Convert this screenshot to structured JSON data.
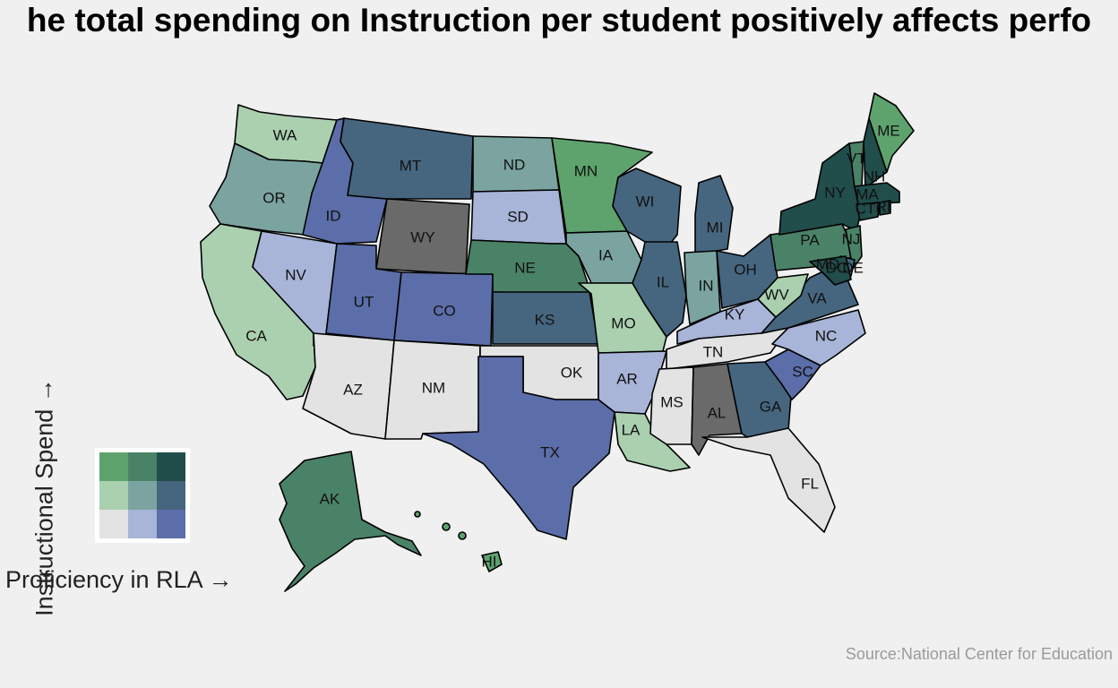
{
  "title": "he total spending on Instruction per student positively affects perfo",
  "legend": {
    "y_axis_label": "Instructional Spend →",
    "x_axis_label": "Proficiency in RLA →",
    "cells": [
      [
        "#5ea36e",
        "#4a8267",
        "#214d4b"
      ],
      [
        "#aad0b0",
        "#7ba4a0",
        "#46667f"
      ],
      [
        "#e3e3e3",
        "#a8b4d8",
        "#5b6ea9"
      ]
    ]
  },
  "source": "Source:National Center for Education",
  "colors": {
    "g1": "#aad0b0",
    "g2": "#5ea36e",
    "g3": "#4a8267",
    "dk": "#214d4b",
    "tl": "#7ba4a0",
    "sb": "#46667f",
    "lg": "#e3e3e3",
    "lb": "#a8b4d8",
    "mb": "#5b6ea9",
    "na": "#6a6a6a"
  },
  "chart_data": {
    "type": "choropleth",
    "title": "he total spending on Instruction per student positively affects perfo",
    "states": [
      {
        "abbr": "WA",
        "class": "g1"
      },
      {
        "abbr": "OR",
        "class": "tl"
      },
      {
        "abbr": "CA",
        "class": "g1"
      },
      {
        "abbr": "NV",
        "class": "lb"
      },
      {
        "abbr": "ID",
        "class": "mb"
      },
      {
        "abbr": "MT",
        "class": "sb"
      },
      {
        "abbr": "WY",
        "class": "na"
      },
      {
        "abbr": "UT",
        "class": "mb"
      },
      {
        "abbr": "AZ",
        "class": "lg"
      },
      {
        "abbr": "CO",
        "class": "mb"
      },
      {
        "abbr": "NM",
        "class": "lg"
      },
      {
        "abbr": "ND",
        "class": "tl"
      },
      {
        "abbr": "SD",
        "class": "lb"
      },
      {
        "abbr": "NE",
        "class": "g3"
      },
      {
        "abbr": "KS",
        "class": "sb"
      },
      {
        "abbr": "OK",
        "class": "lg"
      },
      {
        "abbr": "TX",
        "class": "mb"
      },
      {
        "abbr": "MN",
        "class": "g2"
      },
      {
        "abbr": "IA",
        "class": "tl"
      },
      {
        "abbr": "MO",
        "class": "g1"
      },
      {
        "abbr": "AR",
        "class": "lb"
      },
      {
        "abbr": "LA",
        "class": "g1"
      },
      {
        "abbr": "WI",
        "class": "sb"
      },
      {
        "abbr": "IL",
        "class": "sb"
      },
      {
        "abbr": "MI",
        "class": "sb"
      },
      {
        "abbr": "IN",
        "class": "tl"
      },
      {
        "abbr": "OH",
        "class": "sb"
      },
      {
        "abbr": "KY",
        "class": "lb"
      },
      {
        "abbr": "TN",
        "class": "lg"
      },
      {
        "abbr": "MS",
        "class": "lg"
      },
      {
        "abbr": "AL",
        "class": "na"
      },
      {
        "abbr": "GA",
        "class": "sb"
      },
      {
        "abbr": "FL",
        "class": "lg"
      },
      {
        "abbr": "SC",
        "class": "mb"
      },
      {
        "abbr": "NC",
        "class": "lb"
      },
      {
        "abbr": "VA",
        "class": "sb"
      },
      {
        "abbr": "WV",
        "class": "g1"
      },
      {
        "abbr": "PA",
        "class": "g3"
      },
      {
        "abbr": "NY",
        "class": "dk"
      },
      {
        "abbr": "VT",
        "class": "g3"
      },
      {
        "abbr": "NH",
        "class": "dk"
      },
      {
        "abbr": "ME",
        "class": "g2"
      },
      {
        "abbr": "MA",
        "class": "dk"
      },
      {
        "abbr": "CT",
        "class": "dk"
      },
      {
        "abbr": "RI",
        "class": "dk"
      },
      {
        "abbr": "NJ",
        "class": "g3"
      },
      {
        "abbr": "DE",
        "class": "sb"
      },
      {
        "abbr": "MD",
        "class": "dk"
      },
      {
        "abbr": "DC",
        "class": "dk"
      },
      {
        "abbr": "AK",
        "class": "g3"
      },
      {
        "abbr": "HI",
        "class": "g2"
      }
    ]
  }
}
